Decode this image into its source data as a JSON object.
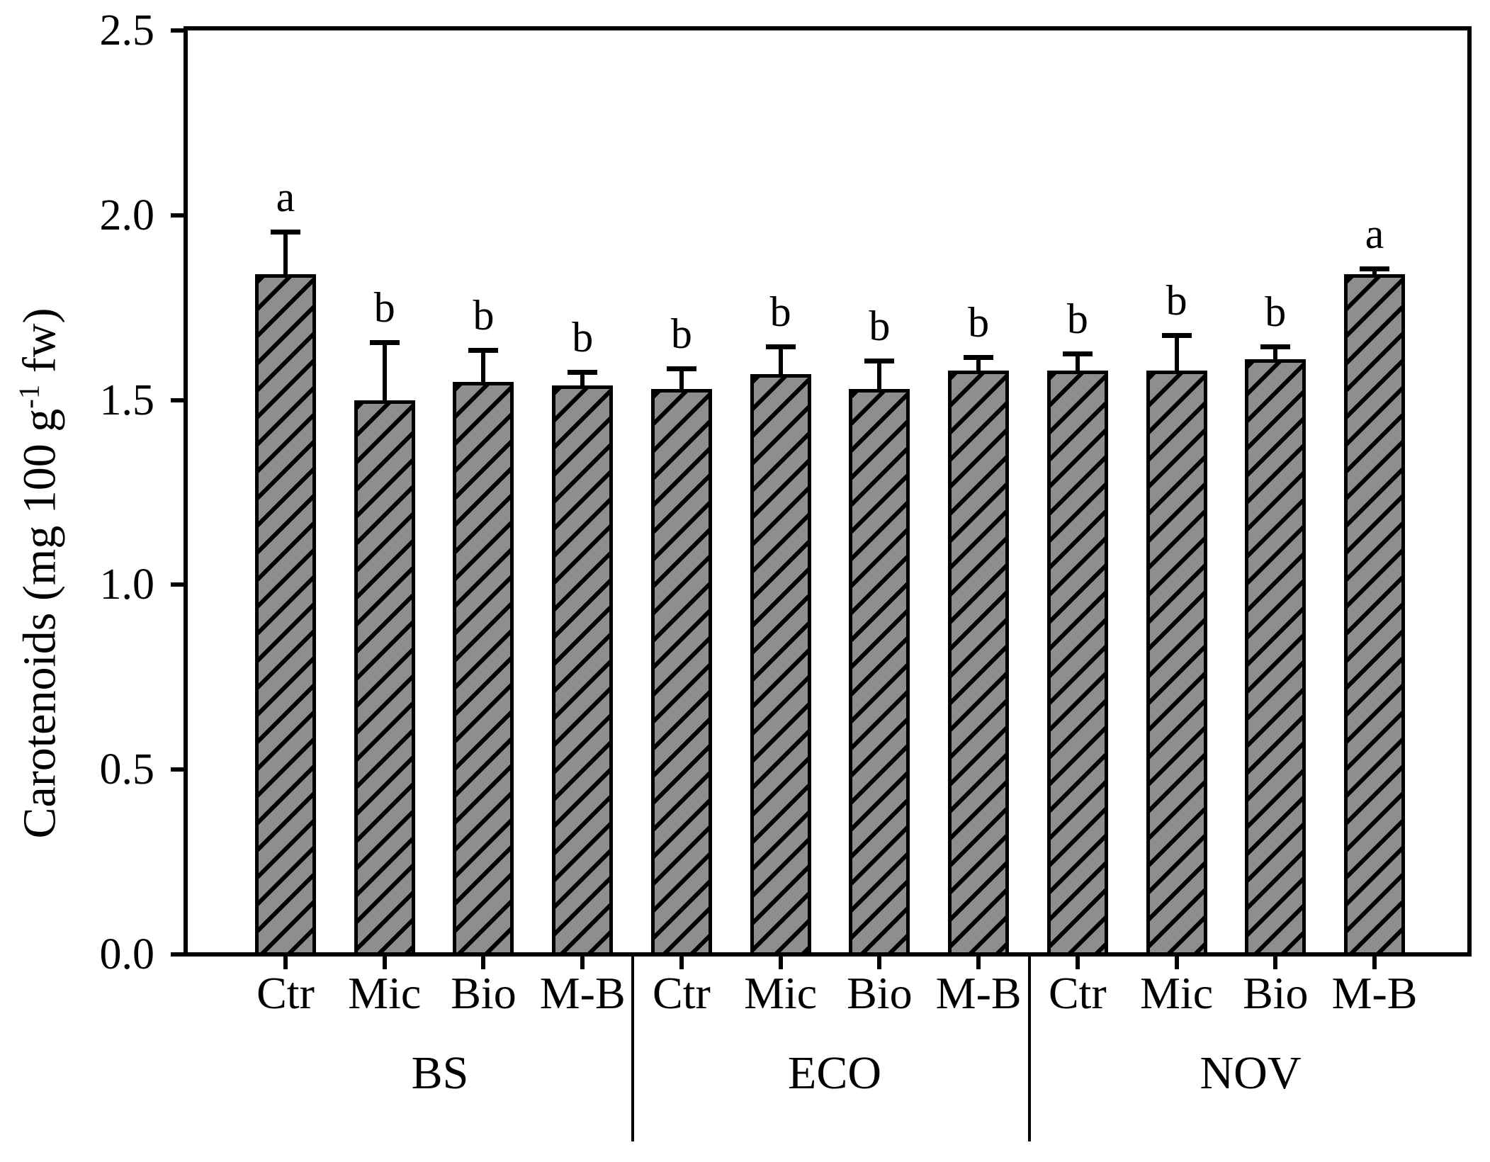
{
  "chart_data": {
    "type": "bar",
    "title": "",
    "xlabel": "",
    "ylabel": "Carotenoids (mg 100 g⁻¹ fw)",
    "ylabel_parts": {
      "pre": "Carotenoids (mg 100 g",
      "sup": "-1",
      "post": " fw)"
    },
    "ylim": [
      0.0,
      2.5
    ],
    "yticks": [
      {
        "value": 0.0,
        "label": "0.0"
      },
      {
        "value": 0.5,
        "label": "0.5"
      },
      {
        "value": 1.0,
        "label": "1.0"
      },
      {
        "value": 1.5,
        "label": "1.5"
      },
      {
        "value": 2.0,
        "label": "2.0"
      },
      {
        "value": 2.5,
        "label": "2.5"
      }
    ],
    "grid": false,
    "legend": false,
    "error_bars": "upper-only",
    "bar_fill_color": "#8e8e8e",
    "bar_edge_color": "#000000",
    "bar_hatch": "forward-diagonal",
    "categories": [
      "Ctr",
      "Mic",
      "Bio",
      "M-B"
    ],
    "groups": [
      {
        "label": "BS",
        "bars": [
          {
            "category": "Ctr",
            "value": 1.84,
            "error": 0.11,
            "sig": "a"
          },
          {
            "category": "Mic",
            "value": 1.5,
            "error": 0.15,
            "sig": "b"
          },
          {
            "category": "Bio",
            "value": 1.55,
            "error": 0.08,
            "sig": "b"
          },
          {
            "category": "M-B",
            "value": 1.54,
            "error": 0.03,
            "sig": "b"
          }
        ]
      },
      {
        "label": "ECO",
        "bars": [
          {
            "category": "Ctr",
            "value": 1.53,
            "error": 0.05,
            "sig": "b"
          },
          {
            "category": "Mic",
            "value": 1.57,
            "error": 0.07,
            "sig": "b"
          },
          {
            "category": "Bio",
            "value": 1.53,
            "error": 0.07,
            "sig": "b"
          },
          {
            "category": "M-B",
            "value": 1.58,
            "error": 0.03,
            "sig": "b"
          }
        ]
      },
      {
        "label": "NOV",
        "bars": [
          {
            "category": "Ctr",
            "value": 1.58,
            "error": 0.04,
            "sig": "b"
          },
          {
            "category": "Mic",
            "value": 1.58,
            "error": 0.09,
            "sig": "b"
          },
          {
            "category": "Bio",
            "value": 1.61,
            "error": 0.03,
            "sig": "b"
          },
          {
            "category": "M-B",
            "value": 1.84,
            "error": 0.01,
            "sig": "a"
          }
        ]
      }
    ]
  }
}
